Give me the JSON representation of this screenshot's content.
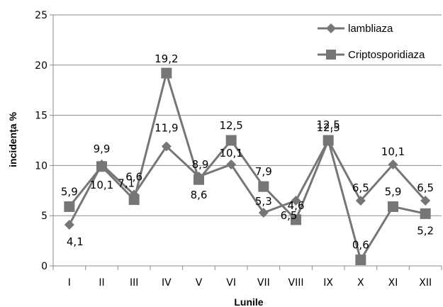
{
  "chart_data": {
    "type": "line",
    "categories": [
      "I",
      "II",
      "III",
      "IV",
      "V",
      "VI",
      "VII",
      "VIII",
      "IX",
      "X",
      "XI",
      "XII"
    ],
    "series": [
      {
        "name": "lambliaza",
        "marker": "diamond",
        "color": "#767676",
        "values": [
          4.1,
          10.1,
          7.1,
          11.9,
          8.9,
          10.1,
          5.3,
          6.5,
          12.5,
          6.5,
          10.1,
          6.5
        ],
        "labels": [
          "4,1",
          "10,1",
          "7,1",
          "11,9",
          "8,9",
          "10,1",
          "5,3",
          "6,5",
          "12,5",
          "6,5",
          "10,1",
          "6,5"
        ]
      },
      {
        "name": "Criptosporidiaza",
        "marker": "square",
        "color": "#767676",
        "values": [
          5.9,
          9.9,
          6.6,
          19.2,
          8.6,
          12.5,
          7.9,
          4.6,
          12.5,
          0.6,
          5.9,
          5.2
        ],
        "labels": [
          "5,9",
          "9,9",
          "6,6",
          "19,2",
          "8,6",
          "12,5",
          "7,9",
          "4,6",
          "12,5",
          "0,6",
          "5,9",
          "5,2"
        ]
      }
    ],
    "xlabel": "Lunile",
    "ylabel": "incidența %",
    "ylim": [
      0,
      25
    ],
    "yticks": [
      0,
      5,
      10,
      15,
      20,
      25
    ],
    "grid": true,
    "legend_position": "top-right"
  }
}
